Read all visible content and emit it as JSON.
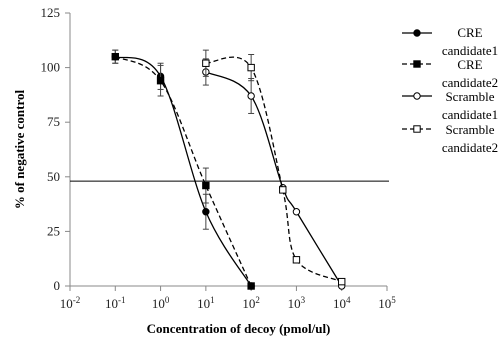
{
  "chart_data": {
    "type": "line",
    "xlabel": "Concentration of decoy (pmol/ul)",
    "ylabel": "% of negative control",
    "xscale": "log",
    "xlim": [
      0.01,
      100000
    ],
    "ylim": [
      0,
      125
    ],
    "x_ticks": [
      {
        "value": 0.01,
        "base": "10",
        "exp": "-2"
      },
      {
        "value": 0.1,
        "base": "10",
        "exp": "-1"
      },
      {
        "value": 1,
        "base": "10",
        "exp": "0"
      },
      {
        "value": 10,
        "base": "10",
        "exp": "1"
      },
      {
        "value": 100,
        "base": "10",
        "exp": "2"
      },
      {
        "value": 1000,
        "base": "10",
        "exp": "3"
      },
      {
        "value": 10000,
        "base": "10",
        "exp": "4"
      },
      {
        "value": 100000,
        "base": "10",
        "exp": "5"
      }
    ],
    "y_ticks": [
      {
        "value": 0,
        "label": "0"
      },
      {
        "value": 25,
        "label": "25"
      },
      {
        "value": 50,
        "label": "50"
      },
      {
        "value": 75,
        "label": "75"
      },
      {
        "value": 100,
        "label": "100"
      },
      {
        "value": 125,
        "label": "125"
      }
    ],
    "reference_line": {
      "y": 48
    },
    "legend_position": "right",
    "series": [
      {
        "name_lines": [
          "CRE",
          "candidate1"
        ],
        "marker": "filled-circle",
        "dash": "solid",
        "x": [
          0.1,
          1,
          10,
          100
        ],
        "y": [
          105,
          96,
          34,
          0
        ],
        "err": [
          3,
          6,
          8,
          0
        ]
      },
      {
        "name_lines": [
          "CRE",
          "candidate2"
        ],
        "marker": "filled-square",
        "dash": "dashed",
        "x": [
          0.1,
          1,
          10,
          100
        ],
        "y": [
          105,
          94,
          46,
          0
        ],
        "err": [
          3,
          7,
          8,
          0
        ]
      },
      {
        "name_lines": [
          "Scramble",
          "candidate1"
        ],
        "marker": "open-circle",
        "dash": "solid",
        "x": [
          10,
          100,
          500,
          1000,
          10000
        ],
        "y": [
          98,
          87,
          45,
          34,
          0
        ],
        "err": [
          6,
          8,
          0,
          0,
          0
        ]
      },
      {
        "name_lines": [
          "Scramble",
          "candidate2"
        ],
        "marker": "open-square",
        "dash": "dashed",
        "x": [
          10,
          100,
          500,
          1000,
          10000
        ],
        "y": [
          102,
          100,
          44,
          12,
          2
        ],
        "err": [
          6,
          6,
          0,
          0,
          0
        ]
      }
    ]
  }
}
